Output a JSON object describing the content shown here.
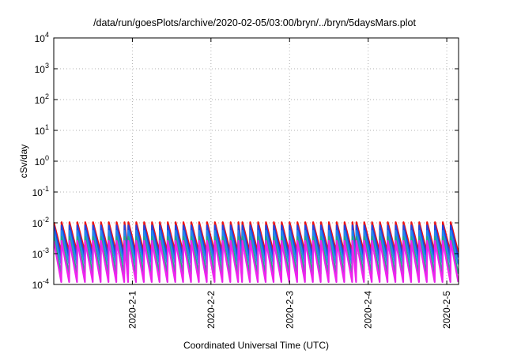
{
  "chart_data": {
    "type": "line",
    "title": "/data/run/goesPlots/archive/2020-02-05/03:00/bryn/../bryn/5daysMars.plot",
    "xlabel": "Coordinated Universal Time (UTC)",
    "ylabel": "cSv/day",
    "yscale": "log",
    "ylim": [
      0.0001,
      10000
    ],
    "y_ticks": [
      {
        "value": 0.0001,
        "base": "10",
        "exp": "-4"
      },
      {
        "value": 0.001,
        "base": "10",
        "exp": "-3"
      },
      {
        "value": 0.01,
        "base": "10",
        "exp": "-2"
      },
      {
        "value": 0.1,
        "base": "10",
        "exp": "-1"
      },
      {
        "value": 1,
        "base": "10",
        "exp": "0"
      },
      {
        "value": 10,
        "base": "10",
        "exp": "1"
      },
      {
        "value": 100,
        "base": "10",
        "exp": "2"
      },
      {
        "value": 1000,
        "base": "10",
        "exp": "3"
      },
      {
        "value": 10000,
        "base": "10",
        "exp": "4"
      }
    ],
    "xlim": [
      0,
      5.15
    ],
    "x_ticks": [
      {
        "value": 1,
        "label": "2020-2-1"
      },
      {
        "value": 2,
        "label": "2020-2-2"
      },
      {
        "value": 3,
        "label": "2020-2-3"
      },
      {
        "value": 4,
        "label": "2020-2-4"
      },
      {
        "value": 5,
        "label": "2020-2-5"
      }
    ],
    "grid": true,
    "legend": "none",
    "pattern_note_excluded": true,
    "series": [
      {
        "color": "#ee1111",
        "peak": 0.0105,
        "trough": 0.0011
      },
      {
        "color": "#2244dd",
        "peak": 0.0082,
        "trough": 0.00075
      },
      {
        "color": "#2288ee",
        "peak": 0.0055,
        "trough": 0.00045
      },
      {
        "color": "#22aa88",
        "peak": 0.0035,
        "trough": 0.00022
      },
      {
        "color": "#ee22ee",
        "peak": 0.0026,
        "trough": 0.00012
      }
    ],
    "segments": [
      {
        "start": 0.0,
        "end": 0.95,
        "period": 0.1
      },
      {
        "start": 0.95,
        "end": 2.4,
        "period": 0.1
      },
      {
        "start": 2.4,
        "end": 3.1,
        "period": 0.1
      },
      {
        "start": 3.1,
        "end": 3.85,
        "period": 0.1
      },
      {
        "start": 3.85,
        "end": 4.55,
        "period": 0.1
      },
      {
        "start": 4.55,
        "end": 5.15,
        "period": 0.1
      }
    ]
  }
}
